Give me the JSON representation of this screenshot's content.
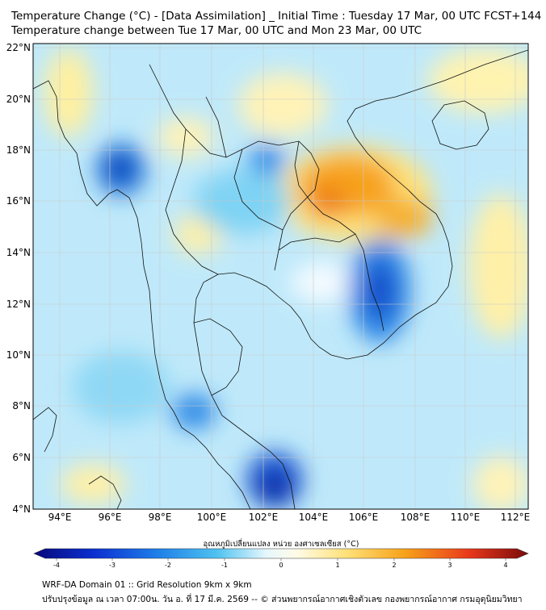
{
  "title_line1": "Temperature Change (°C) - [Data Assimilation] _ Initial Time : Tuesday 17 Mar, 00 UTC FCST+144",
  "title_line2": "Temperature change between Tue 17 Mar, 00 UTC and Mon 23 Mar, 00 UTC",
  "lat_labels": [
    "22°N",
    "20°N",
    "18°N",
    "16°N",
    "14°N",
    "12°N",
    "10°N",
    "8°N",
    "6°N",
    "4°N"
  ],
  "lon_labels": [
    "94°E",
    "96°E",
    "98°E",
    "100°E",
    "102°E",
    "104°E",
    "106°E",
    "108°E",
    "110°E",
    "112°E"
  ],
  "colorbar": {
    "label": "อุณหภูมิเปลี่ยนแปลง หน่วย องศาเซลเซียส (°C)",
    "ticks": [
      "-4",
      "-3",
      "-2",
      "-1",
      "0",
      "1",
      "2",
      "3",
      "4"
    ],
    "colors": [
      "#08087a",
      "#0b2fd0",
      "#1f7fe8",
      "#4fc2f0",
      "#ffffff",
      "#ffe27a",
      "#f7a21a",
      "#e8391b",
      "#7a0a0a"
    ]
  },
  "footer_line1": "WRF-DA Domain 01 :: Grid Resolution 9km x 9km",
  "footer_line2": "ปรับปรุงข้อมูล ณ เวลา 07:00น. วัน อ. ที่ 17 มี.ค. 2569 -- © ส่วนพยากรณ์อากาศเชิงตัวเลข กองพยากรณ์อากาศ กรมอุตุนิยมวิทยา"
}
